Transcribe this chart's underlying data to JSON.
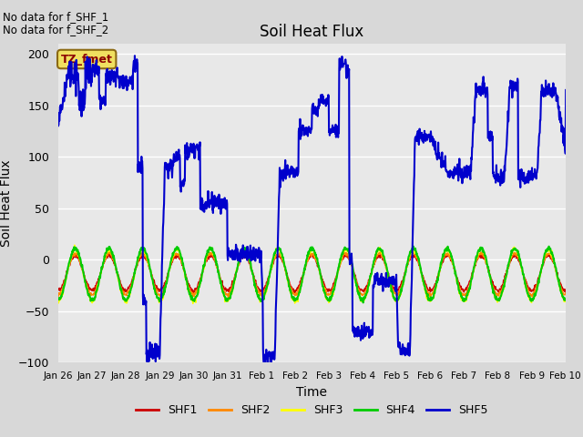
{
  "title": "Soil Heat Flux",
  "xlabel": "Time",
  "ylabel": "Soil Heat Flux",
  "ylim": [
    -100,
    210
  ],
  "yticks": [
    -100,
    -50,
    0,
    50,
    100,
    150,
    200
  ],
  "background_color": "#d8d8d8",
  "plot_bg_color": "#e8e8e8",
  "annotation_text1": "No data for f_SHF_1",
  "annotation_text2": "No data for f_SHF_2",
  "legend_label": "TZ_fmet",
  "series_colors": {
    "SHF1": "#cc0000",
    "SHF2": "#ff8800",
    "SHF3": "#ffff00",
    "SHF4": "#00cc00",
    "SHF5": "#0000cc"
  },
  "series_linewidths": {
    "SHF1": 1.0,
    "SHF2": 1.0,
    "SHF3": 1.0,
    "SHF4": 1.5,
    "SHF5": 1.5
  },
  "xtick_labels": [
    "Jan 26",
    "Jan 27",
    "Jan 28",
    "Jan 29",
    "Jan 30",
    "Jan 31",
    "Feb 1",
    "Feb 2",
    "Feb 3",
    "Feb 4",
    "Feb 5",
    "Feb 6",
    "Feb 7",
    "Feb 8",
    "Feb 9",
    "Feb 10"
  ],
  "xtick_positions": [
    0,
    1,
    2,
    3,
    4,
    5,
    6,
    7,
    8,
    9,
    10,
    11,
    12,
    13,
    14,
    15
  ]
}
